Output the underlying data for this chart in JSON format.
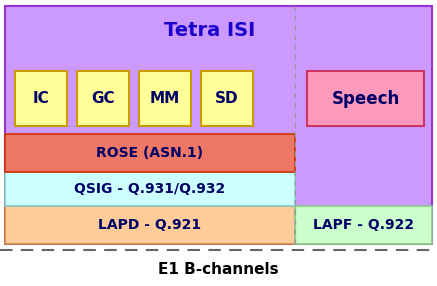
{
  "title": "Tetra ISI",
  "title_color": "#1a00cc",
  "bg_color": "#ffffff",
  "outer_box_fill": "#cc99ff",
  "outer_box_edge": "#9933cc",
  "small_boxes": [
    "IC",
    "GC",
    "MM",
    "SD"
  ],
  "small_box_fill": "#ffff99",
  "small_box_edge": "#cc9900",
  "speech_fill": "#ff99bb",
  "speech_edge": "#cc3366",
  "rose_fill": "#ee7766",
  "rose_edge": "#cc3300",
  "rose_label": "ROSE (ASN.1)",
  "qsig_fill": "#ccffff",
  "qsig_edge": "#88cccc",
  "qsig_label": "QSIG - Q.931/Q.932",
  "lapd_fill": "#ffcc99",
  "lapd_edge": "#cc8844",
  "lapd_label": "LAPD - Q.921",
  "lapf_fill": "#ccffcc",
  "lapf_edge": "#88cc88",
  "lapf_label": "LAPF - Q.922",
  "speech_label": "Speech",
  "bottom_label": "E1 B-channels",
  "label_color": "#000066",
  "dashed_line_color": "#666666",
  "dashed_vert_color": "#999999"
}
